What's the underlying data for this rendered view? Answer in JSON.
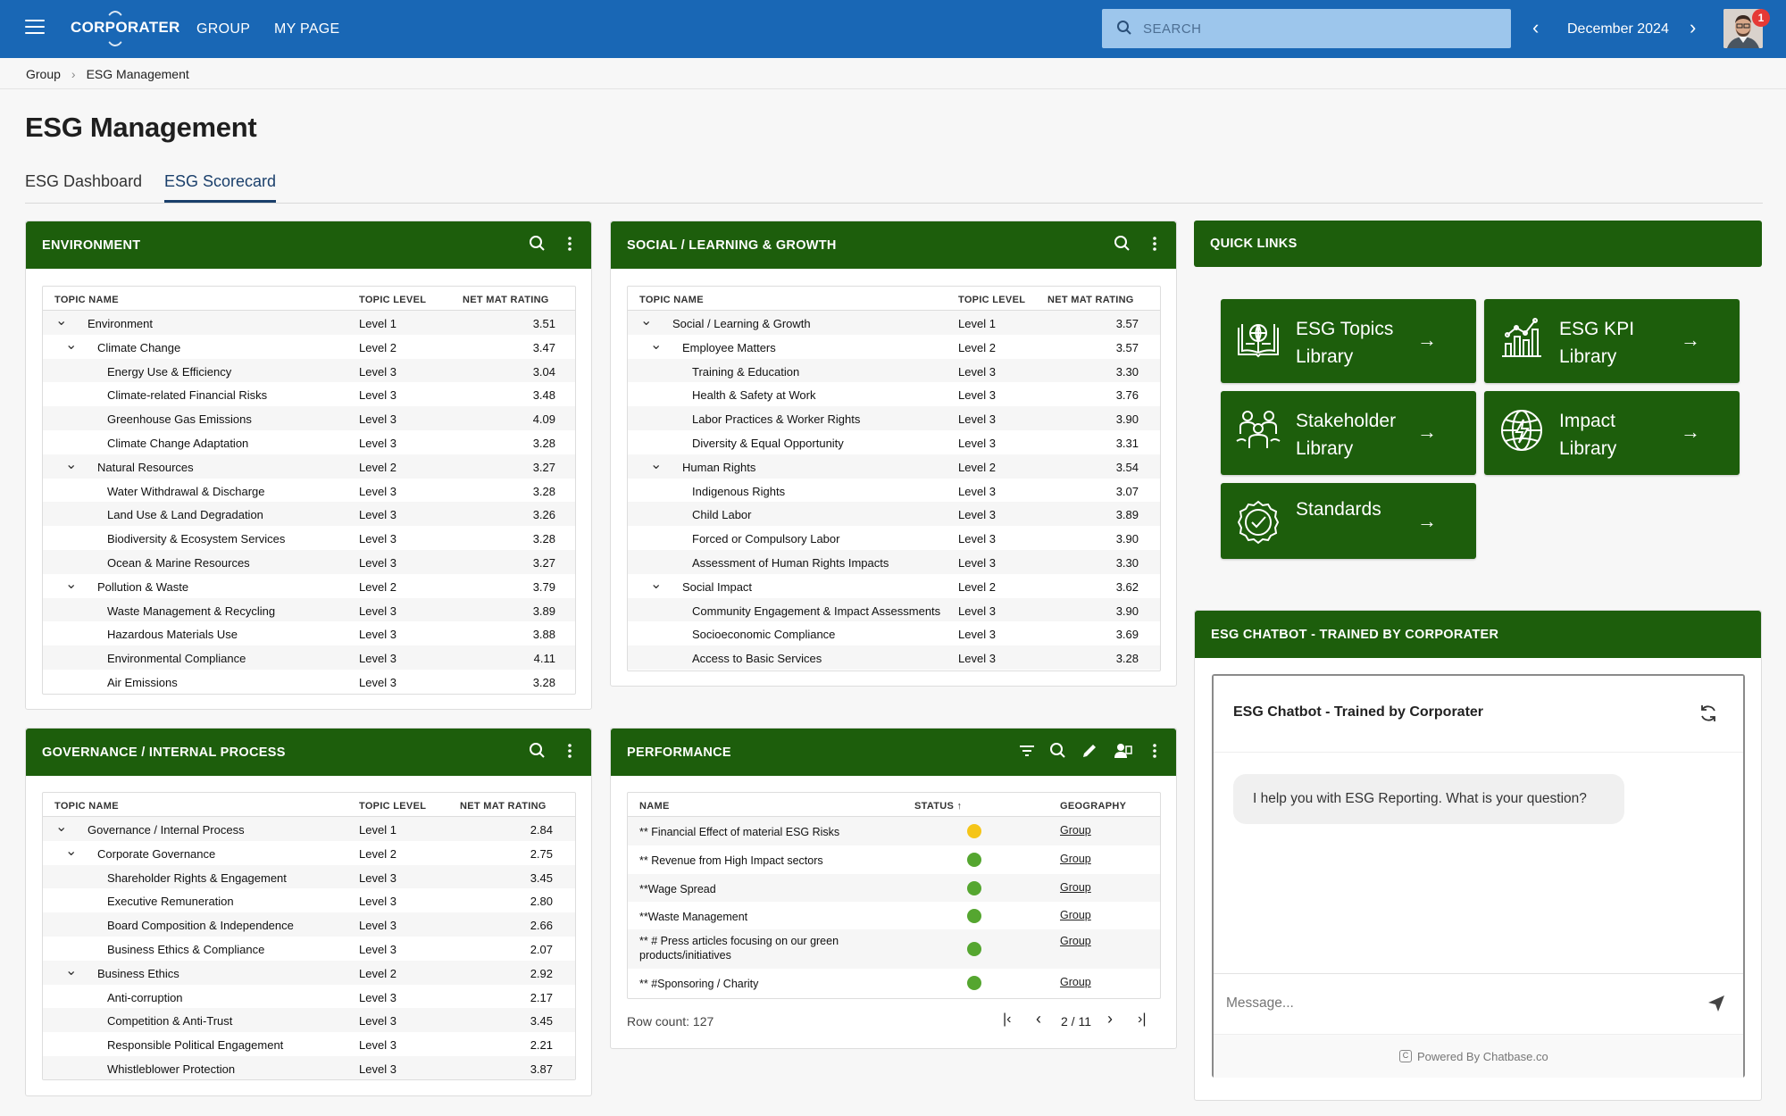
{
  "topbar": {
    "logo": "CORPORATER",
    "nav": [
      "GROUP",
      "MY PAGE"
    ],
    "search_placeholder": "SEARCH",
    "date": "December 2024",
    "notifications": "1"
  },
  "breadcrumb": [
    "Group",
    "ESG Management"
  ],
  "page_title": "ESG Management",
  "tabs": [
    "ESG Dashboard",
    "ESG Scorecard"
  ],
  "colors": {
    "header_green": "#1d5e0c",
    "topbar_blue": "#1967b5",
    "status_yellow": "#f5c518",
    "status_green": "#55a630"
  },
  "environment": {
    "title": "ENVIRONMENT",
    "headers": [
      "TOPIC NAME",
      "TOPIC LEVEL",
      "NET MAT RATING"
    ],
    "rows": [
      {
        "name": "Environment",
        "level": "Level 1",
        "rating": "3.51",
        "depth": 0,
        "expand": true
      },
      {
        "name": "Climate Change",
        "level": "Level 2",
        "rating": "3.47",
        "depth": 1,
        "expand": true
      },
      {
        "name": "Energy Use & Efficiency",
        "level": "Level 3",
        "rating": "3.04",
        "depth": 2
      },
      {
        "name": "Climate-related Financial Risks",
        "level": "Level 3",
        "rating": "3.48",
        "depth": 2
      },
      {
        "name": "Greenhouse Gas Emissions",
        "level": "Level 3",
        "rating": "4.09",
        "depth": 2
      },
      {
        "name": "Climate Change Adaptation",
        "level": "Level 3",
        "rating": "3.28",
        "depth": 2
      },
      {
        "name": "Natural Resources",
        "level": "Level 2",
        "rating": "3.27",
        "depth": 1,
        "expand": true
      },
      {
        "name": "Water Withdrawal & Discharge",
        "level": "Level 3",
        "rating": "3.28",
        "depth": 2
      },
      {
        "name": "Land Use & Land Degradation",
        "level": "Level 3",
        "rating": "3.26",
        "depth": 2
      },
      {
        "name": "Biodiversity & Ecosystem Services",
        "level": "Level 3",
        "rating": "3.28",
        "depth": 2
      },
      {
        "name": "Ocean & Marine Resources",
        "level": "Level 3",
        "rating": "3.27",
        "depth": 2
      },
      {
        "name": "Pollution & Waste",
        "level": "Level 2",
        "rating": "3.79",
        "depth": 1,
        "expand": true
      },
      {
        "name": "Waste Management & Recycling",
        "level": "Level 3",
        "rating": "3.89",
        "depth": 2
      },
      {
        "name": "Hazardous Materials Use",
        "level": "Level 3",
        "rating": "3.88",
        "depth": 2
      },
      {
        "name": "Environmental Compliance",
        "level": "Level 3",
        "rating": "4.11",
        "depth": 2
      },
      {
        "name": "Air Emissions",
        "level": "Level 3",
        "rating": "3.28",
        "depth": 2
      }
    ]
  },
  "social": {
    "title": "SOCIAL / LEARNING & GROWTH",
    "headers": [
      "TOPIC NAME",
      "TOPIC LEVEL",
      "NET MAT RATING"
    ],
    "rows": [
      {
        "name": "Social / Learning & Growth",
        "level": "Level 1",
        "rating": "3.57",
        "depth": 0,
        "expand": true
      },
      {
        "name": "Employee Matters",
        "level": "Level 2",
        "rating": "3.57",
        "depth": 1,
        "expand": true
      },
      {
        "name": "Training & Education",
        "level": "Level 3",
        "rating": "3.30",
        "depth": 2
      },
      {
        "name": "Health & Safety at Work",
        "level": "Level 3",
        "rating": "3.76",
        "depth": 2
      },
      {
        "name": "Labor Practices & Worker Rights",
        "level": "Level 3",
        "rating": "3.90",
        "depth": 2
      },
      {
        "name": "Diversity & Equal Opportunity",
        "level": "Level 3",
        "rating": "3.31",
        "depth": 2
      },
      {
        "name": "Human Rights",
        "level": "Level 2",
        "rating": "3.54",
        "depth": 1,
        "expand": true
      },
      {
        "name": "Indigenous Rights",
        "level": "Level 3",
        "rating": "3.07",
        "depth": 2
      },
      {
        "name": "Child Labor",
        "level": "Level 3",
        "rating": "3.89",
        "depth": 2
      },
      {
        "name": "Forced or Compulsory Labor",
        "level": "Level 3",
        "rating": "3.90",
        "depth": 2
      },
      {
        "name": "Assessment of Human Rights Impacts",
        "level": "Level 3",
        "rating": "3.30",
        "depth": 2
      },
      {
        "name": "Social Impact",
        "level": "Level 2",
        "rating": "3.62",
        "depth": 1,
        "expand": true
      },
      {
        "name": "Community Engagement & Impact Assessments",
        "level": "Level 3",
        "rating": "3.90",
        "depth": 2
      },
      {
        "name": "Socioeconomic Compliance",
        "level": "Level 3",
        "rating": "3.69",
        "depth": 2
      },
      {
        "name": "Access to Basic Services",
        "level": "Level 3",
        "rating": "3.28",
        "depth": 2
      }
    ]
  },
  "governance": {
    "title": "GOVERNANCE / INTERNAL PROCESS",
    "headers": [
      "TOPIC NAME",
      "TOPIC LEVEL",
      "NET MAT RATING"
    ],
    "rows": [
      {
        "name": "Governance / Internal Process",
        "level": "Level 1",
        "rating": "2.84",
        "depth": 0,
        "expand": true
      },
      {
        "name": "Corporate Governance",
        "level": "Level 2",
        "rating": "2.75",
        "depth": 1,
        "expand": true
      },
      {
        "name": "Shareholder Rights & Engagement",
        "level": "Level 3",
        "rating": "3.45",
        "depth": 2
      },
      {
        "name": "Executive Remuneration",
        "level": "Level 3",
        "rating": "2.80",
        "depth": 2
      },
      {
        "name": "Board Composition & Independence",
        "level": "Level 3",
        "rating": "2.66",
        "depth": 2
      },
      {
        "name": "Business Ethics & Compliance",
        "level": "Level 3",
        "rating": "2.07",
        "depth": 2
      },
      {
        "name": "Business Ethics",
        "level": "Level 2",
        "rating": "2.92",
        "depth": 1,
        "expand": true
      },
      {
        "name": "Anti-corruption",
        "level": "Level 3",
        "rating": "2.17",
        "depth": 2
      },
      {
        "name": "Competition & Anti-Trust",
        "level": "Level 3",
        "rating": "3.45",
        "depth": 2
      },
      {
        "name": "Responsible Political Engagement",
        "level": "Level 3",
        "rating": "2.21",
        "depth": 2
      },
      {
        "name": "Whistleblower Protection",
        "level": "Level 3",
        "rating": "3.87",
        "depth": 2
      }
    ]
  },
  "performance": {
    "title": "PERFORMANCE",
    "headers": [
      "NAME",
      "STATUS ↑",
      "GEOGRAPHY"
    ],
    "rows": [
      {
        "name": "** Financial Effect of material ESG Risks",
        "status": "yellow",
        "geo": "Group"
      },
      {
        "name": "** Revenue from High Impact sectors",
        "status": "green",
        "geo": "Group"
      },
      {
        "name": "**Wage Spread",
        "status": "green",
        "geo": "Group"
      },
      {
        "name": "**Waste Management",
        "status": "green",
        "geo": "Group"
      },
      {
        "name": "** # Press articles focusing on our green products/initiatives",
        "status": "green",
        "geo": "Group"
      },
      {
        "name": "** #Sponsoring / Charity",
        "status": "green",
        "geo": "Group"
      }
    ],
    "row_count": "Row count: 127",
    "page": "2 / 11"
  },
  "quick_links": {
    "title": "QUICK LINKS",
    "items": [
      {
        "label": "ESG Topics Library",
        "icon": "library-icon"
      },
      {
        "label": "ESG KPI Library",
        "icon": "kpi-chart-icon"
      },
      {
        "label": "Stakeholder Library",
        "icon": "stakeholder-icon"
      },
      {
        "label": "Impact Library",
        "icon": "globe-icon"
      },
      {
        "label": "Standards",
        "icon": "badge-check-icon"
      }
    ]
  },
  "chatbot": {
    "panel_title": "ESG CHATBOT - TRAINED BY CORPORATER",
    "title": "ESG Chatbot - Trained by Corporater",
    "message": "I help you with ESG Reporting. What is your question?",
    "input_placeholder": "Message...",
    "powered_by": "Powered By Chatbase.co"
  }
}
